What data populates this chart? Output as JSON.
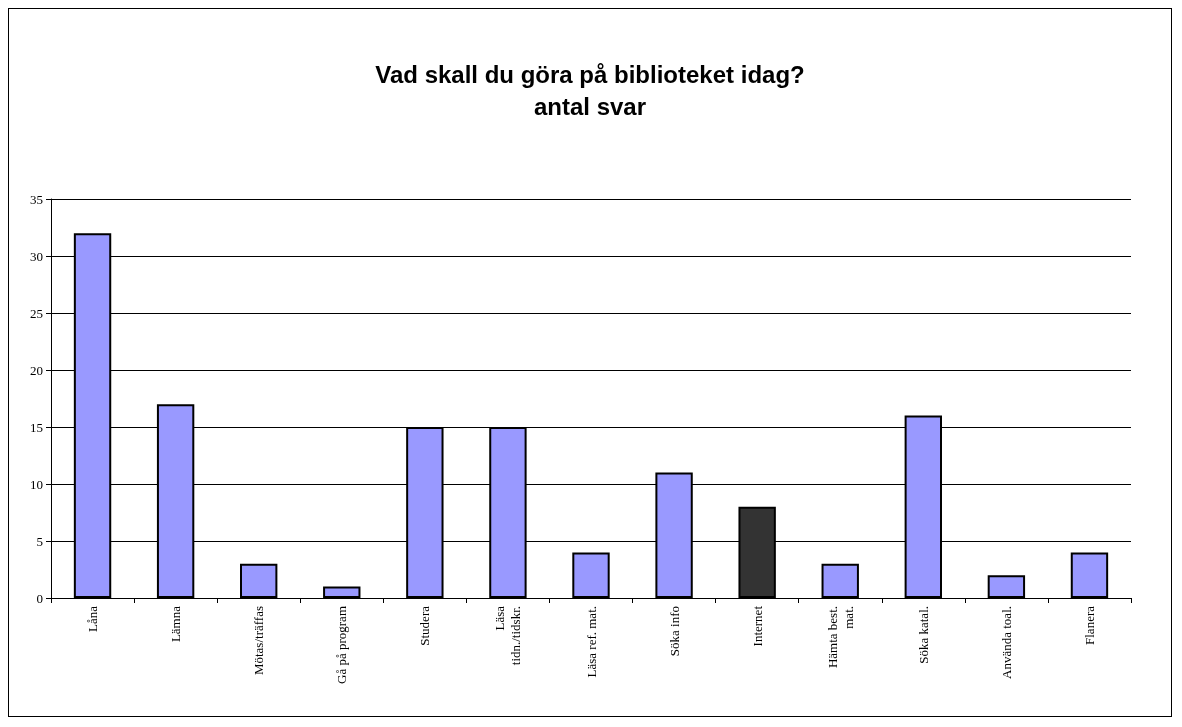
{
  "chart_data": {
    "type": "bar",
    "title": "Vad skall du göra på biblioteket idag?",
    "subtitle": "antal svar",
    "categories": [
      "Låna",
      "Lämna",
      "Mötas/träffas",
      "Gå på program",
      "Studera",
      "Läsa\ntidn./tidskr.",
      "Läsa ref. mat.",
      "Söka info",
      "Internet",
      "Hämta best.\nmat.",
      "Söka katal.",
      "Använda toal.",
      "Flanera"
    ],
    "values": [
      32,
      17,
      3,
      1,
      15,
      15,
      4,
      11,
      8,
      3,
      16,
      2,
      4
    ],
    "colors": [
      "#9999ff",
      "#9999ff",
      "#9999ff",
      "#9999ff",
      "#9999ff",
      "#9999ff",
      "#9999ff",
      "#9999ff",
      "#333333",
      "#9999ff",
      "#9999ff",
      "#9999ff",
      "#9999ff"
    ],
    "ylim": [
      0,
      35
    ],
    "yticks": [
      0,
      5,
      10,
      15,
      20,
      25,
      30,
      35
    ],
    "grid": "y"
  }
}
